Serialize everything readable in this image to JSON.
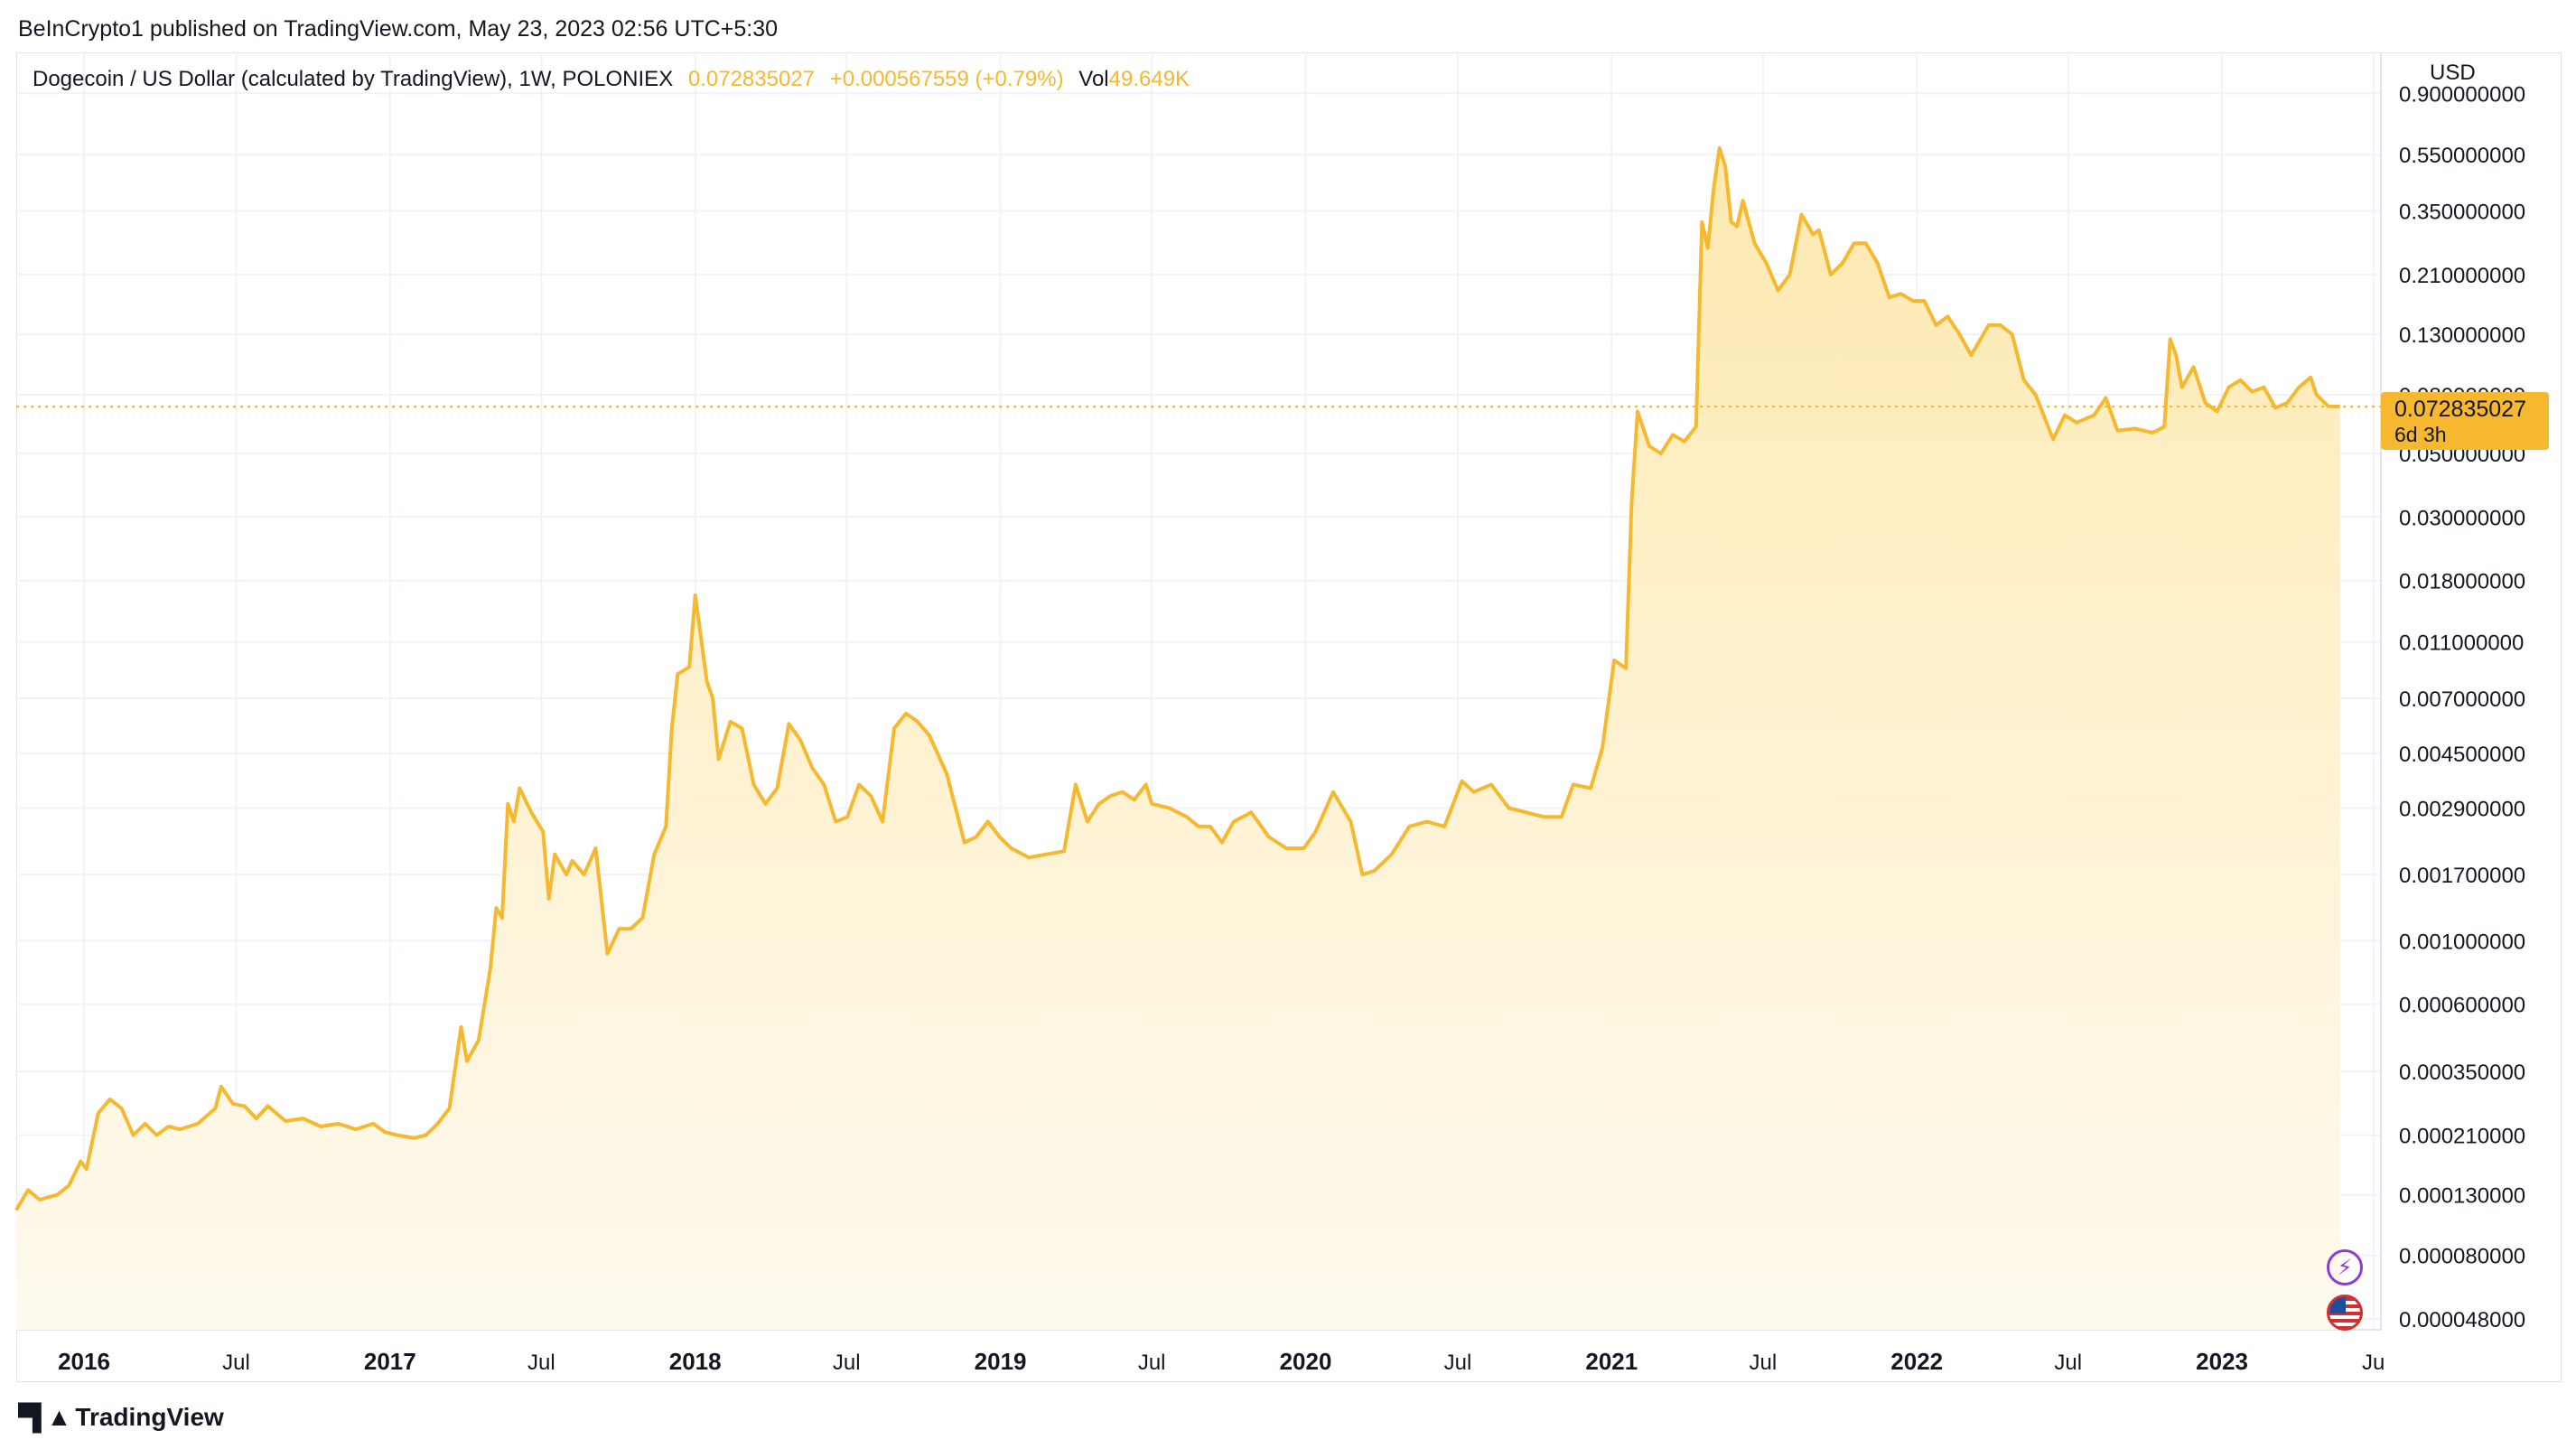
{
  "header": {
    "published": "BeInCrypto1 published on TradingView.com, May 23, 2023 02:56 UTC+5:30"
  },
  "legend": {
    "symbol": "Dogecoin / US Dollar (calculated by TradingView), 1W, POLONIEX",
    "price": "0.072835027",
    "change": "+0.000567559 (+0.79%)",
    "vol_label": "Vol",
    "vol_value": "49.649K"
  },
  "colors": {
    "line": "#f5b82e",
    "fill_top": "#fde9b0",
    "fill_bottom": "#fffaf0",
    "grid": "#f0f3fa",
    "axis_text": "#131722",
    "price_tag": "#f5b82e"
  },
  "icons": {
    "flash": "flash-icon",
    "flag": "us-flag-icon",
    "logo": "tradingview-logo-icon"
  },
  "footer": {
    "brand": "TradingView"
  },
  "chart_data": {
    "type": "area",
    "yscale": "log",
    "y_unit_label": "USD",
    "ylim": [
      4.4e-05,
      1.25
    ],
    "xlim": [
      "2015-10-12",
      "2023-07-10"
    ],
    "grid": true,
    "current_price_tag": {
      "value": "0.072835027",
      "countdown": "6d 3h",
      "price": 0.072835027
    },
    "y_ticks": [
      {
        "label": "0.900000000",
        "value": 0.9
      },
      {
        "label": "0.550000000",
        "value": 0.55
      },
      {
        "label": "0.350000000",
        "value": 0.35
      },
      {
        "label": "0.210000000",
        "value": 0.21
      },
      {
        "label": "0.130000000",
        "value": 0.13
      },
      {
        "label": "0.080000000",
        "value": 0.08
      },
      {
        "label": "0.050000000",
        "value": 0.05
      },
      {
        "label": "0.030000000",
        "value": 0.03
      },
      {
        "label": "0.018000000",
        "value": 0.018
      },
      {
        "label": "0.011000000",
        "value": 0.011
      },
      {
        "label": "0.007000000",
        "value": 0.007
      },
      {
        "label": "0.004500000",
        "value": 0.0045
      },
      {
        "label": "0.002900000",
        "value": 0.0029
      },
      {
        "label": "0.001700000",
        "value": 0.0017
      },
      {
        "label": "0.001000000",
        "value": 0.001
      },
      {
        "label": "0.000600000",
        "value": 0.0006
      },
      {
        "label": "0.000350000",
        "value": 0.00035
      },
      {
        "label": "0.000210000",
        "value": 0.00021
      },
      {
        "label": "0.000130000",
        "value": 0.00013
      },
      {
        "label": "0.000080000",
        "value": 8e-05
      },
      {
        "label": "0.000048000",
        "value": 4.8e-05
      }
    ],
    "x_ticks": [
      {
        "label": "2016",
        "date": "2016-01-01",
        "bold": true
      },
      {
        "label": "Jul",
        "date": "2016-07-01",
        "bold": false
      },
      {
        "label": "2017",
        "date": "2017-01-01",
        "bold": true
      },
      {
        "label": "Jul",
        "date": "2017-07-01",
        "bold": false
      },
      {
        "label": "2018",
        "date": "2018-01-01",
        "bold": true
      },
      {
        "label": "Jul",
        "date": "2018-07-01",
        "bold": false
      },
      {
        "label": "2019",
        "date": "2019-01-01",
        "bold": true
      },
      {
        "label": "Jul",
        "date": "2019-07-01",
        "bold": false
      },
      {
        "label": "2020",
        "date": "2020-01-01",
        "bold": true
      },
      {
        "label": "Jul",
        "date": "2020-07-01",
        "bold": false
      },
      {
        "label": "2021",
        "date": "2021-01-01",
        "bold": true
      },
      {
        "label": "Jul",
        "date": "2021-07-01",
        "bold": false
      },
      {
        "label": "2022",
        "date": "2022-01-01",
        "bold": true
      },
      {
        "label": "Jul",
        "date": "2022-07-01",
        "bold": false
      },
      {
        "label": "2023",
        "date": "2023-01-01",
        "bold": true
      },
      {
        "label": "Ju",
        "date": "2023-07-01",
        "bold": false
      }
    ],
    "series": [
      {
        "points": [
          [
            "2015-10-12",
            0.000115
          ],
          [
            "2015-10-26",
            0.000135
          ],
          [
            "2015-11-09",
            0.000125
          ],
          [
            "2015-11-30",
            0.00013
          ],
          [
            "2015-12-14",
            0.00014
          ],
          [
            "2015-12-28",
            0.00017
          ],
          [
            "2016-01-04",
            0.00016
          ],
          [
            "2016-01-18",
            0.00025
          ],
          [
            "2016-02-01",
            0.00028
          ],
          [
            "2016-02-15",
            0.00026
          ],
          [
            "2016-02-29",
            0.00021
          ],
          [
            "2016-03-14",
            0.00023
          ],
          [
            "2016-03-28",
            0.00021
          ],
          [
            "2016-04-11",
            0.000225
          ],
          [
            "2016-04-25",
            0.00022
          ],
          [
            "2016-05-16",
            0.00023
          ],
          [
            "2016-06-06",
            0.00026
          ],
          [
            "2016-06-13",
            0.00031
          ],
          [
            "2016-06-27",
            0.00027
          ],
          [
            "2016-07-11",
            0.000265
          ],
          [
            "2016-07-25",
            0.00024
          ],
          [
            "2016-08-08",
            0.000265
          ],
          [
            "2016-08-29",
            0.000235
          ],
          [
            "2016-09-19",
            0.00024
          ],
          [
            "2016-10-10",
            0.000225
          ],
          [
            "2016-10-31",
            0.00023
          ],
          [
            "2016-11-21",
            0.00022
          ],
          [
            "2016-12-12",
            0.00023
          ],
          [
            "2016-12-26",
            0.000215
          ],
          [
            "2017-01-09",
            0.00021
          ],
          [
            "2017-01-30",
            0.000205
          ],
          [
            "2017-02-13",
            0.00021
          ],
          [
            "2017-02-27",
            0.00023
          ],
          [
            "2017-03-13",
            0.00026
          ],
          [
            "2017-03-27",
            0.0005
          ],
          [
            "2017-04-03",
            0.00038
          ],
          [
            "2017-04-17",
            0.00045
          ],
          [
            "2017-05-01",
            0.0008
          ],
          [
            "2017-05-08",
            0.0013
          ],
          [
            "2017-05-15",
            0.0012
          ],
          [
            "2017-05-22",
            0.003
          ],
          [
            "2017-05-29",
            0.0026
          ],
          [
            "2017-06-05",
            0.0034
          ],
          [
            "2017-06-19",
            0.0028
          ],
          [
            "2017-07-03",
            0.0024
          ],
          [
            "2017-07-10",
            0.0014
          ],
          [
            "2017-07-17",
            0.002
          ],
          [
            "2017-07-31",
            0.0017
          ],
          [
            "2017-08-07",
            0.0019
          ],
          [
            "2017-08-21",
            0.0017
          ],
          [
            "2017-09-04",
            0.0021
          ],
          [
            "2017-09-18",
            0.0009
          ],
          [
            "2017-10-02",
            0.0011
          ],
          [
            "2017-10-16",
            0.0011
          ],
          [
            "2017-10-30",
            0.0012
          ],
          [
            "2017-11-13",
            0.002
          ],
          [
            "2017-11-27",
            0.0025
          ],
          [
            "2017-12-04",
            0.0055
          ],
          [
            "2017-12-11",
            0.0085
          ],
          [
            "2017-12-25",
            0.009
          ],
          [
            "2018-01-01",
            0.016
          ],
          [
            "2018-01-15",
            0.008
          ],
          [
            "2018-01-22",
            0.007
          ],
          [
            "2018-01-29",
            0.0043
          ],
          [
            "2018-02-12",
            0.0058
          ],
          [
            "2018-02-26",
            0.0055
          ],
          [
            "2018-03-12",
            0.0035
          ],
          [
            "2018-03-26",
            0.003
          ],
          [
            "2018-04-09",
            0.0034
          ],
          [
            "2018-04-23",
            0.0057
          ],
          [
            "2018-05-07",
            0.005
          ],
          [
            "2018-05-21",
            0.004
          ],
          [
            "2018-06-04",
            0.0035
          ],
          [
            "2018-06-18",
            0.0026
          ],
          [
            "2018-07-02",
            0.0027
          ],
          [
            "2018-07-16",
            0.0035
          ],
          [
            "2018-07-30",
            0.0032
          ],
          [
            "2018-08-13",
            0.0026
          ],
          [
            "2018-08-27",
            0.0055
          ],
          [
            "2018-09-10",
            0.0062
          ],
          [
            "2018-09-24",
            0.0058
          ],
          [
            "2018-10-08",
            0.0052
          ],
          [
            "2018-10-29",
            0.0038
          ],
          [
            "2018-11-19",
            0.0022
          ],
          [
            "2018-12-03",
            0.0023
          ],
          [
            "2018-12-17",
            0.0026
          ],
          [
            "2018-12-31",
            0.0023
          ],
          [
            "2019-01-14",
            0.0021
          ],
          [
            "2019-02-04",
            0.00195
          ],
          [
            "2019-02-25",
            0.002
          ],
          [
            "2019-03-18",
            0.00205
          ],
          [
            "2019-04-01",
            0.0035
          ],
          [
            "2019-04-15",
            0.0026
          ],
          [
            "2019-04-29",
            0.003
          ],
          [
            "2019-05-13",
            0.0032
          ],
          [
            "2019-05-27",
            0.0033
          ],
          [
            "2019-06-10",
            0.0031
          ],
          [
            "2019-06-24",
            0.0035
          ],
          [
            "2019-07-01",
            0.003
          ],
          [
            "2019-07-22",
            0.0029
          ],
          [
            "2019-08-12",
            0.0027
          ],
          [
            "2019-08-26",
            0.0025
          ],
          [
            "2019-09-09",
            0.0025
          ],
          [
            "2019-09-23",
            0.0022
          ],
          [
            "2019-10-07",
            0.0026
          ],
          [
            "2019-10-28",
            0.0028
          ],
          [
            "2019-11-18",
            0.0023
          ],
          [
            "2019-12-09",
            0.0021
          ],
          [
            "2019-12-30",
            0.0021
          ],
          [
            "2020-01-13",
            0.0024
          ],
          [
            "2020-02-03",
            0.0033
          ],
          [
            "2020-02-24",
            0.0026
          ],
          [
            "2020-03-09",
            0.0017
          ],
          [
            "2020-03-23",
            0.00175
          ],
          [
            "2020-04-13",
            0.002
          ],
          [
            "2020-05-04",
            0.0025
          ],
          [
            "2020-05-25",
            0.0026
          ],
          [
            "2020-06-15",
            0.0025
          ],
          [
            "2020-07-06",
            0.0036
          ],
          [
            "2020-07-20",
            0.0033
          ],
          [
            "2020-08-10",
            0.0035
          ],
          [
            "2020-08-31",
            0.0029
          ],
          [
            "2020-09-21",
            0.0028
          ],
          [
            "2020-10-12",
            0.0027
          ],
          [
            "2020-11-02",
            0.0027
          ],
          [
            "2020-11-16",
            0.0035
          ],
          [
            "2020-12-07",
            0.0034
          ],
          [
            "2020-12-21",
            0.0047
          ],
          [
            "2021-01-04",
            0.0095
          ],
          [
            "2021-01-18",
            0.0089
          ],
          [
            "2021-01-25",
            0.034
          ],
          [
            "2021-02-01",
            0.07
          ],
          [
            "2021-02-15",
            0.053
          ],
          [
            "2021-03-01",
            0.05
          ],
          [
            "2021-03-15",
            0.058
          ],
          [
            "2021-03-29",
            0.055
          ],
          [
            "2021-04-12",
            0.062
          ],
          [
            "2021-04-19",
            0.32
          ],
          [
            "2021-04-26",
            0.26
          ],
          [
            "2021-05-03",
            0.42
          ],
          [
            "2021-05-10",
            0.58
          ],
          [
            "2021-05-17",
            0.5
          ],
          [
            "2021-05-24",
            0.32
          ],
          [
            "2021-05-31",
            0.31
          ],
          [
            "2021-06-07",
            0.38
          ],
          [
            "2021-06-21",
            0.27
          ],
          [
            "2021-07-05",
            0.23
          ],
          [
            "2021-07-19",
            0.185
          ],
          [
            "2021-08-02",
            0.21
          ],
          [
            "2021-08-16",
            0.34
          ],
          [
            "2021-08-30",
            0.29
          ],
          [
            "2021-09-06",
            0.3
          ],
          [
            "2021-09-20",
            0.21
          ],
          [
            "2021-10-04",
            0.23
          ],
          [
            "2021-10-18",
            0.27
          ],
          [
            "2021-11-01",
            0.27
          ],
          [
            "2021-11-15",
            0.23
          ],
          [
            "2021-11-29",
            0.175
          ],
          [
            "2021-12-13",
            0.18
          ],
          [
            "2021-12-27",
            0.17
          ],
          [
            "2022-01-10",
            0.17
          ],
          [
            "2022-01-24",
            0.14
          ],
          [
            "2022-02-07",
            0.15
          ],
          [
            "2022-02-21",
            0.13
          ],
          [
            "2022-03-07",
            0.11
          ],
          [
            "2022-03-28",
            0.14
          ],
          [
            "2022-04-11",
            0.14
          ],
          [
            "2022-04-25",
            0.13
          ],
          [
            "2022-05-09",
            0.09
          ],
          [
            "2022-05-23",
            0.08
          ],
          [
            "2022-06-13",
            0.056
          ],
          [
            "2022-06-27",
            0.068
          ],
          [
            "2022-07-11",
            0.064
          ],
          [
            "2022-08-01",
            0.068
          ],
          [
            "2022-08-15",
            0.078
          ],
          [
            "2022-08-29",
            0.06
          ],
          [
            "2022-09-19",
            0.061
          ],
          [
            "2022-10-10",
            0.059
          ],
          [
            "2022-10-24",
            0.062
          ],
          [
            "2022-10-31",
            0.125
          ],
          [
            "2022-11-07",
            0.11
          ],
          [
            "2022-11-14",
            0.085
          ],
          [
            "2022-11-28",
            0.1
          ],
          [
            "2022-12-12",
            0.075
          ],
          [
            "2022-12-26",
            0.07
          ],
          [
            "2023-01-09",
            0.085
          ],
          [
            "2023-01-23",
            0.09
          ],
          [
            "2023-02-06",
            0.082
          ],
          [
            "2023-02-20",
            0.085
          ],
          [
            "2023-03-06",
            0.072
          ],
          [
            "2023-03-20",
            0.075
          ],
          [
            "2023-04-03",
            0.085
          ],
          [
            "2023-04-17",
            0.092
          ],
          [
            "2023-04-24",
            0.08
          ],
          [
            "2023-05-08",
            0.073
          ],
          [
            "2023-05-22",
            0.072835
          ]
        ]
      }
    ]
  }
}
